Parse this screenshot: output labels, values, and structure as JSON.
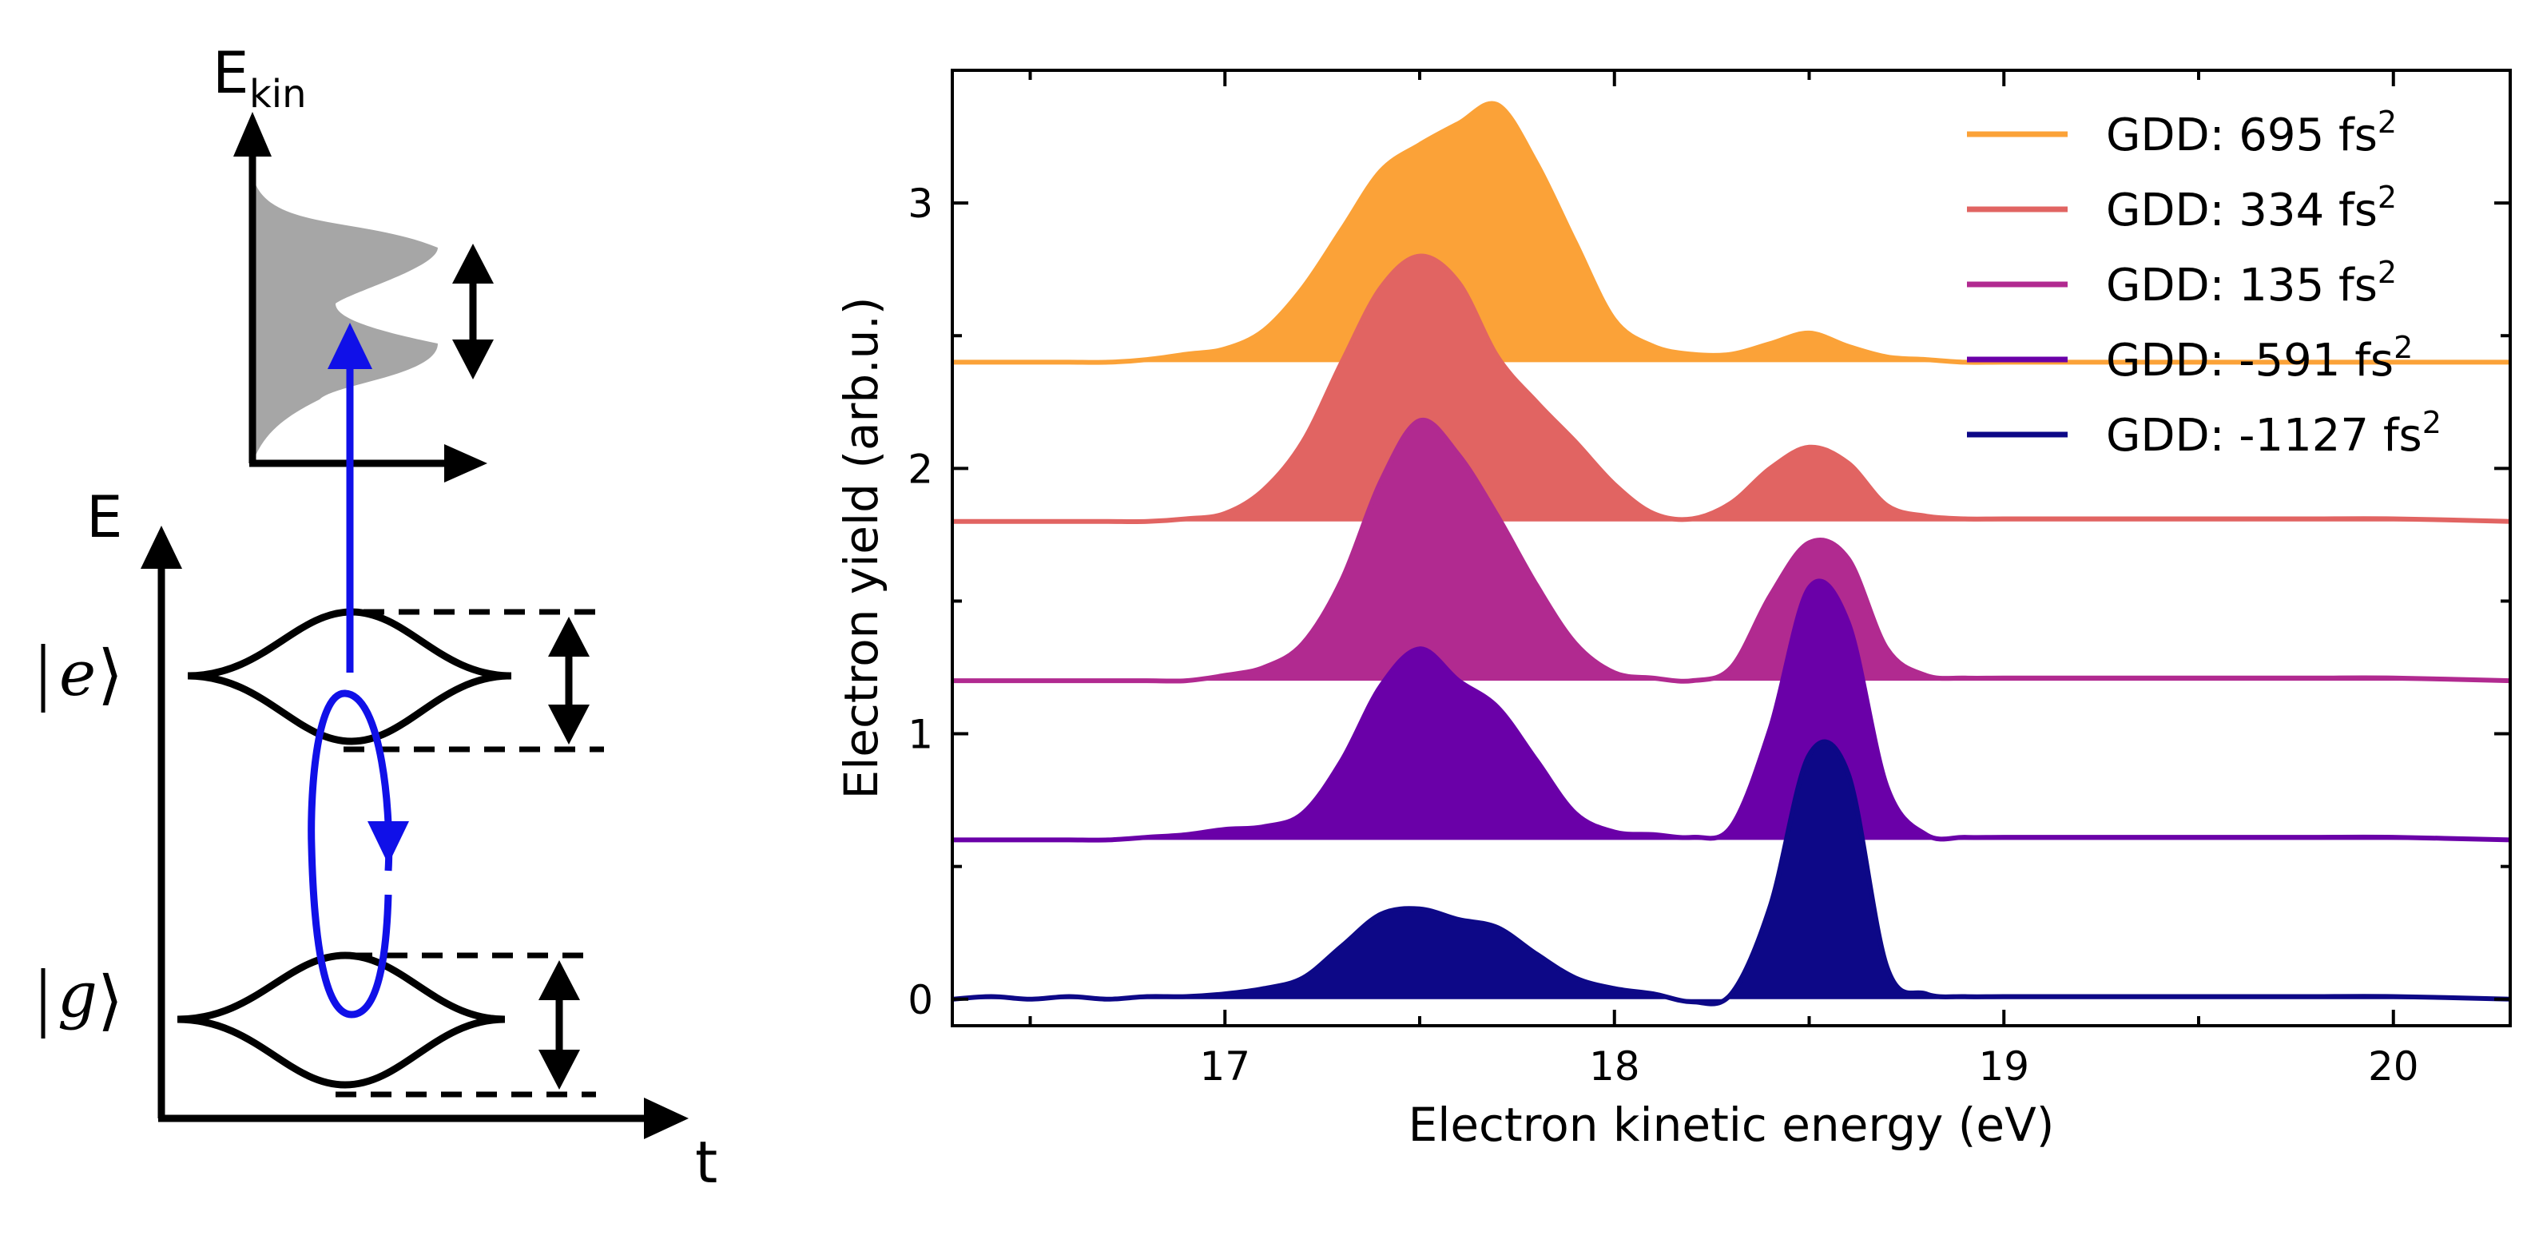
{
  "schematic": {
    "ekin_axis_label": "E",
    "ekin_axis_subscript": "kin",
    "energy_axis_label": "E",
    "time_axis_label": "t",
    "excited_state_label": "e",
    "ground_state_label": "g"
  },
  "chart_data": {
    "type": "area",
    "title": "",
    "xlabel": "Electron kinetic energy (eV)",
    "ylabel": "Electron yield (arb.u.)",
    "xlim": [
      16.3,
      20.3
    ],
    "ylim": [
      -0.1,
      3.5
    ],
    "xticks": [
      17,
      18,
      19,
      20
    ],
    "yticks": [
      0,
      1,
      2,
      3
    ],
    "grid": false,
    "legend_position": "top-right",
    "x": [
      16.3,
      16.4,
      16.5,
      16.6,
      16.7,
      16.8,
      16.9,
      17.0,
      17.1,
      17.2,
      17.3,
      17.4,
      17.5,
      17.6,
      17.7,
      17.8,
      17.9,
      18.0,
      18.1,
      18.2,
      18.3,
      18.4,
      18.5,
      18.6,
      18.7,
      18.8,
      18.9,
      19.0,
      19.2,
      19.4,
      19.6,
      19.8,
      20.0,
      20.3
    ],
    "series": [
      {
        "name": "GDD: 695 fs²",
        "legend_value": "695",
        "offset": 2.4,
        "color": "#fba238",
        "values": [
          0,
          0,
          0,
          0,
          0,
          0.01,
          0.03,
          0.05,
          0.12,
          0.28,
          0.5,
          0.72,
          0.82,
          0.9,
          0.97,
          0.75,
          0.45,
          0.16,
          0.06,
          0.03,
          0.03,
          0.07,
          0.11,
          0.06,
          0.02,
          0.01,
          0,
          0,
          0,
          0,
          0,
          0,
          0,
          0
        ]
      },
      {
        "name": "GDD: 334 fs²",
        "legend_value": "334",
        "offset": 1.8,
        "color": "#e16462",
        "values": [
          0,
          0,
          0,
          0,
          0,
          0,
          0.01,
          0.03,
          0.12,
          0.3,
          0.6,
          0.88,
          1.0,
          0.9,
          0.62,
          0.45,
          0.3,
          0.14,
          0.03,
          0.01,
          0.07,
          0.2,
          0.28,
          0.22,
          0.06,
          0.02,
          0.01,
          0.01,
          0.01,
          0.01,
          0.01,
          0.01,
          0.01,
          0
        ]
      },
      {
        "name": "GDD: 135 fs²",
        "legend_value": "135",
        "offset": 1.2,
        "color": "#b12a90",
        "values": [
          0,
          0,
          0,
          0,
          0,
          0,
          0,
          0.02,
          0.05,
          0.14,
          0.38,
          0.75,
          0.98,
          0.85,
          0.62,
          0.36,
          0.14,
          0.03,
          0.01,
          0,
          0.05,
          0.32,
          0.52,
          0.46,
          0.12,
          0.02,
          0.01,
          0.01,
          0.01,
          0.01,
          0.01,
          0.01,
          0.01,
          0
        ]
      },
      {
        "name": "GDD: -591 fs²",
        "legend_value": "-591",
        "offset": 0.6,
        "color": "#6a00a8",
        "values": [
          0,
          0,
          0,
          0,
          0,
          0.01,
          0.02,
          0.04,
          0.05,
          0.1,
          0.3,
          0.58,
          0.72,
          0.6,
          0.5,
          0.3,
          0.1,
          0.03,
          0.02,
          0.01,
          0.05,
          0.42,
          0.95,
          0.82,
          0.2,
          0.02,
          0.01,
          0.01,
          0.01,
          0.01,
          0.01,
          0.01,
          0.01,
          0
        ]
      },
      {
        "name": "GDD: -1127 fs²",
        "legend_value": "-1127",
        "offset": 0.0,
        "color": "#0d0887",
        "values": [
          0,
          0.01,
          0,
          0.01,
          0,
          0.01,
          0.01,
          0.02,
          0.04,
          0.08,
          0.2,
          0.32,
          0.34,
          0.3,
          0.27,
          0.17,
          0.08,
          0.04,
          0.02,
          -0.01,
          0.02,
          0.35,
          0.92,
          0.85,
          0.12,
          0.02,
          0.01,
          0.01,
          0.01,
          0.01,
          0.01,
          0.01,
          0.01,
          0
        ]
      }
    ]
  }
}
